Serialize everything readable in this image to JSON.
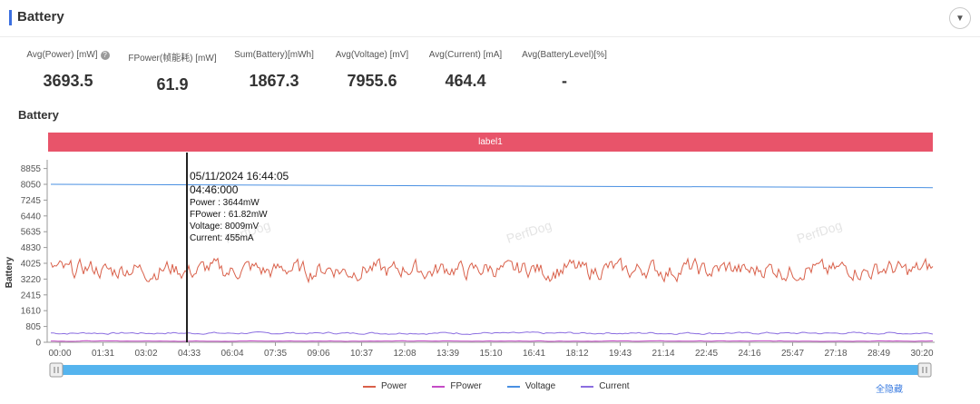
{
  "section": {
    "title": "Battery"
  },
  "stats": [
    {
      "label": "Avg(Power) [mW]",
      "value": "3693.5",
      "help": true
    },
    {
      "label": "FPower(帧能耗) [mW]",
      "value": "61.9"
    },
    {
      "label": "Sum(Battery)[mWh]",
      "value": "1867.3"
    },
    {
      "label": "Avg(Voltage) [mV]",
      "value": "7955.6"
    },
    {
      "label": "Avg(Current) [mA]",
      "value": "464.4"
    },
    {
      "label": "Avg(BatteryLevel)[%]",
      "value": "-"
    }
  ],
  "chart_title": "Battery",
  "label_band": "label1",
  "watermark": "PerfDog",
  "tooltip": {
    "date": "05/11/2024 16:44:05",
    "time": "04:46:000",
    "lines": [
      "Power   : 3644mW",
      "FPower : 61.82mW",
      "Voltage: 8009mV",
      "Current: 455mA"
    ]
  },
  "legend_hide_all": "全隐藏",
  "colors": {
    "power": "#d9604a",
    "fpower": "#c54cc6",
    "voltage": "#4a90e2",
    "current": "#8b6ee0",
    "band": "#e8546a",
    "slider": "#55b4ee"
  },
  "chart_data": {
    "type": "line",
    "ylabel": "Battery",
    "yticks": [
      0,
      805,
      1610,
      2415,
      3220,
      4025,
      4830,
      5635,
      6440,
      7245,
      8050,
      8855
    ],
    "ylim": [
      0,
      9300
    ],
    "xticks": [
      "00:00",
      "01:31",
      "03:02",
      "04:33",
      "06:04",
      "07:35",
      "09:06",
      "10:37",
      "12:08",
      "13:39",
      "15:10",
      "16:41",
      "18:12",
      "19:43",
      "21:14",
      "22:45",
      "24:16",
      "25:47",
      "27:18",
      "28:49",
      "30:20"
    ],
    "xlim_sec": [
      0,
      1820
    ],
    "cursor_sec": 286,
    "series": [
      {
        "name": "Power",
        "color": "#d9604a",
        "mean": 3693.5,
        "amplitude": 380
      },
      {
        "name": "FPower",
        "color": "#c54cc6",
        "mean": 62,
        "amplitude": 10
      },
      {
        "name": "Voltage",
        "color": "#4a90e2",
        "start": 8050,
        "end": 7880
      },
      {
        "name": "Current",
        "color": "#8b6ee0",
        "mean": 464,
        "amplitude": 40
      }
    ]
  }
}
